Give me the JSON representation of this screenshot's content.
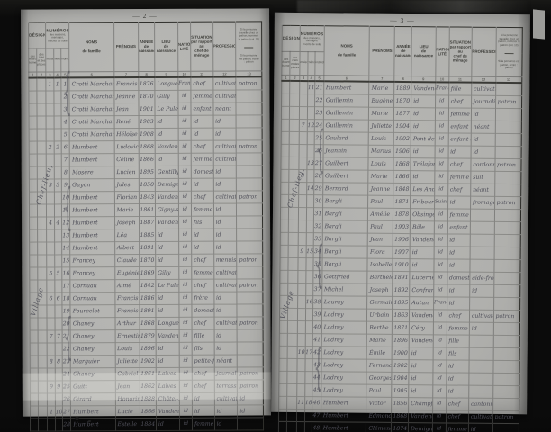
{
  "scan": {
    "colors": {
      "bg": "#0b0b0b",
      "paper": "#b4b4b1",
      "ink": "#50505a",
      "print": "#3c3c38",
      "rule": "#8f8f8b",
      "border": "#2f2f2b"
    }
  },
  "table_header": {
    "designation": {
      "title": "DÉSIGNATION",
      "sub_left": "des\nécarts,\nhameaux",
      "sub_right": "des rues\net des\nplaces"
    },
    "numeros": {
      "title": "NUMÉROS",
      "subtitle": "des maisons, ménages,\ninscrits de suite",
      "cols": [
        "maisons",
        "ménages",
        "individus"
      ]
    },
    "noms": "NOMS\n\nde famille",
    "prenoms": "PRÉNOMS",
    "annee": "ANNÉE\nde\nnaissance",
    "lieu": "LIEU\nde\nnaissance",
    "nation": "NATIONA-\nLITÉ",
    "situation": "SITUATION\npar rapport\nau\nchef de ménage",
    "profession": "PROFESSION",
    "patron_note_1": "Si la personne travaille chez un patron, nommer le patron (col. 13)",
    "patron_note_2": "Si la personne est patron, écrire : patron",
    "col_numbers": [
      "1",
      "2",
      "3",
      "4",
      "5",
      "6",
      "7",
      "8",
      "9",
      "10",
      "11",
      "12",
      "13"
    ]
  },
  "pages": [
    {
      "page_number": "— 2 —",
      "margin_labels": [
        "Chef-lieu,",
        "Village"
      ],
      "rows": [
        [
          "1",
          "1",
          "1",
          "Crotti Marchand",
          "Francis",
          "1876",
          "Longuevergne",
          "Française",
          "chef",
          "cultivateur",
          "patron"
        ],
        [
          "",
          "",
          "2",
          "Crotti Marchand",
          "Jeanne",
          "1870",
          "Gilly",
          "id",
          "femme",
          "cultivatrice",
          ""
        ],
        [
          "",
          "",
          "3",
          "Crotti Marchand",
          "Jean",
          "1901",
          "Le Puley",
          "id",
          "enfant",
          "néant",
          ""
        ],
        [
          "",
          "",
          "4",
          "Crotti Marchand",
          "René",
          "1903",
          "id",
          "id",
          "id",
          "id",
          ""
        ],
        [
          "",
          "",
          "5",
          "Crotti Marchand",
          "Héloïse",
          "1908",
          "id",
          "id",
          "id",
          "id",
          ""
        ],
        [
          "2",
          "2",
          "6",
          "Humbert",
          "Ludovic",
          "1868",
          "Vandenesse",
          "id",
          "chef",
          "cultivateur",
          "patron"
        ],
        [
          "",
          "",
          "7",
          "Humbert",
          "Céline",
          "1866",
          "id",
          "id",
          "femme",
          "cultivatrice",
          ""
        ],
        [
          "",
          "",
          "8",
          "Mosère",
          "Lucien",
          "1895",
          "Gentilly",
          "id",
          "domestique",
          "id",
          ""
        ],
        [
          "3",
          "3",
          "9",
          "Guyon",
          "Jules",
          "1850",
          "Demigny",
          "id",
          "id",
          "id",
          ""
        ],
        [
          "",
          "",
          "10",
          "Humbert",
          "Florian",
          "1843",
          "Vandenesse",
          "id",
          "chef",
          "cultivateur",
          "patron"
        ],
        [
          "",
          "",
          "11",
          "Humbert",
          "Marie",
          "1861",
          "Gigny-s-Saône",
          "id",
          "femme",
          "id",
          ""
        ],
        [
          "4",
          "4",
          "12",
          "Humbert",
          "Joseph",
          "1887",
          "Vandenesse",
          "id",
          "fils",
          "id",
          ""
        ],
        [
          "",
          "",
          "13",
          "Humbert",
          "Léa",
          "1885",
          "id",
          "id",
          "id",
          "id",
          ""
        ],
        [
          "",
          "",
          "14",
          "Humbert",
          "Albert",
          "1891",
          "id",
          "id",
          "id",
          "id",
          ""
        ],
        [
          "",
          "",
          "15",
          "Francey",
          "Claude",
          "1870",
          "id",
          "id",
          "chef",
          "menuisier",
          "patron"
        ],
        [
          "5",
          "5",
          "16",
          "Francey",
          "Eugénie",
          "1869",
          "Gilly",
          "id",
          "femme",
          "cultivatrice",
          ""
        ],
        [
          "",
          "",
          "17",
          "Cornuau",
          "Aimé",
          "1842",
          "Le Puley",
          "id",
          "chef",
          "cultivateur",
          "patron"
        ],
        [
          "6",
          "6",
          "18",
          "Cornuau",
          "Francis",
          "1886",
          "id",
          "id",
          "frère",
          "id",
          ""
        ],
        [
          "",
          "",
          "19",
          "Fourcelot",
          "Francis",
          "1891",
          "id",
          "id",
          "domestique",
          "id",
          ""
        ],
        [
          "",
          "",
          "20",
          "Chaney",
          "Arthur",
          "1868",
          "Longuevergne",
          "id",
          "chef",
          "cultivateur",
          "patron"
        ],
        [
          "7",
          "7",
          "21",
          "Chaney",
          "Ernestine",
          "1879",
          "Vandenesse",
          "id",
          "fille",
          "id",
          ""
        ],
        [
          "",
          "",
          "22",
          "Chaney",
          "Louis",
          "1896",
          "id",
          "id",
          "fils",
          "id",
          ""
        ],
        [
          "8",
          "8",
          "23",
          "Marguier",
          "Juliette",
          "1902",
          "id",
          "id",
          "petite-fille",
          "néant",
          ""
        ],
        [
          "",
          "",
          "24",
          "Chaney",
          "Gabriel",
          "1861",
          "Laives",
          "id",
          "chef",
          "journalier",
          "patron"
        ],
        [
          "9",
          "9",
          "25",
          "Guitt",
          "Jean",
          "1862",
          "Laives",
          "id",
          "chef",
          "terrassier",
          "patron"
        ],
        [
          "",
          "",
          "26",
          "Girard",
          "Honorine",
          "1888",
          "Châtel-Moron",
          "id",
          "id",
          "cultivatrice",
          "id"
        ],
        [
          "1",
          "10",
          "27",
          "Humbert",
          "Lucie",
          "1866",
          "Vandenesse",
          "id",
          "id",
          "id",
          "id"
        ],
        [
          "",
          "",
          "28",
          "Humbert",
          "Estelle",
          "1884",
          "id",
          "id",
          "femme",
          "id",
          ""
        ]
      ]
    },
    {
      "page_number": "— 3 —",
      "margin_labels": [
        "Chef-lieu,",
        "Village"
      ],
      "rows": [
        [
          "",
          "11",
          "21",
          "Humbert",
          "Marie",
          "1889",
          "Vandenesse",
          "Française",
          "fille",
          "cultivatrice",
          ""
        ],
        [
          "",
          "",
          "22",
          "Guillemin",
          "Eugène",
          "1870",
          "id",
          "id",
          "chef",
          "journalier",
          "patron"
        ],
        [
          "",
          "",
          "23",
          "Guillemin",
          "Marie",
          "1877",
          "id",
          "id",
          "femme",
          "id",
          ""
        ],
        [
          "7",
          "12",
          "24",
          "Guillemin",
          "Juliette",
          "1904",
          "id",
          "id",
          "enfant",
          "néant",
          ""
        ],
        [
          "",
          "",
          "25",
          "Gaulard",
          "Louis",
          "1902",
          "Pont-de-Vaux",
          "id",
          "enfant assisté",
          "id",
          ""
        ],
        [
          "",
          "",
          "26",
          "Jeannin",
          "Marius",
          "1906",
          "id",
          "id",
          "id",
          "id",
          ""
        ],
        [
          "",
          "13",
          "27",
          "Guilbert",
          "Louis",
          "1868",
          "Trélaford",
          "id",
          "chef",
          "cordonnier",
          "patron"
        ],
        [
          "8",
          "",
          "28",
          "Guilbert",
          "Marie",
          "1866",
          "id",
          "id",
          "femme",
          "suit",
          ""
        ],
        [
          "",
          "14",
          "29",
          "Bernard",
          "Jeanne",
          "1848",
          "Les Andelys",
          "id",
          "chef",
          "néant",
          ""
        ],
        [
          "",
          "",
          "30",
          "Bargli",
          "Paul",
          "1871",
          "Fribourg",
          "Suisse",
          "id",
          "fromager",
          "patron"
        ],
        [
          "",
          "",
          "31",
          "Bargli",
          "Amélie",
          "1878",
          "Obsingen",
          "id",
          "femme",
          "",
          ""
        ],
        [
          "",
          "",
          "32",
          "Bargli",
          "Paul",
          "1903",
          "Bâle",
          "id",
          "enfant",
          "",
          ""
        ],
        [
          "",
          "",
          "33",
          "Bargli",
          "Jean",
          "1906",
          "Vandenesse",
          "id",
          "id",
          "",
          ""
        ],
        [
          "9",
          "15",
          "34",
          "Bargli",
          "Flora",
          "1907",
          "id",
          "id",
          "id",
          "",
          ""
        ],
        [
          "",
          "",
          "35",
          "Bargli",
          "Isabelle",
          "1910",
          "id",
          "id",
          "id",
          "",
          ""
        ],
        [
          "",
          "",
          "36",
          "Gottfried",
          "Barthélémé",
          "1891",
          "Lucerne",
          "id",
          "domestique",
          "aide-fromager",
          ""
        ],
        [
          "",
          "",
          "37",
          "Michel",
          "Joseph",
          "1892",
          "Confrançon",
          "id",
          "id",
          "id",
          ""
        ],
        [
          "",
          "16",
          "38",
          "Lauray",
          "Germaine",
          "1895",
          "Autun",
          "Française",
          "id",
          "",
          ""
        ],
        [
          "",
          "",
          "39",
          "Ladrey",
          "Urbain",
          "1863",
          "Vandenesse",
          "id",
          "chef",
          "cultivateur",
          "patron"
        ],
        [
          "",
          "",
          "40",
          "Ladrey",
          "Berthe",
          "1871",
          "Céry",
          "id",
          "femme",
          "id",
          ""
        ],
        [
          "",
          "",
          "41",
          "Ladrey",
          "Marie",
          "1896",
          "Vandenesse",
          "id",
          "fille",
          "",
          ""
        ],
        [
          "10",
          "17",
          "42",
          "Ladrey",
          "Émile",
          "1900",
          "id",
          "id",
          "fils",
          "",
          ""
        ],
        [
          "",
          "",
          "43",
          "Ladrey",
          "Fernand",
          "1902",
          "id",
          "id",
          "id",
          "",
          ""
        ],
        [
          "",
          "",
          "44",
          "Ladrey",
          "Georges",
          "1904",
          "id",
          "id",
          "id",
          "",
          ""
        ],
        [
          "",
          "",
          "45",
          "Ladrey",
          "Paul",
          "1905",
          "id",
          "id",
          "id",
          "",
          ""
        ],
        [
          "11",
          "18",
          "46",
          "Humbert",
          "Victor",
          "1856",
          "Champforgeuil",
          "id",
          "chef",
          "cantonnier",
          ""
        ],
        [
          "",
          "",
          "47",
          "Humbert",
          "Edmond",
          "1868",
          "Vandenesse",
          "id",
          "chef",
          "cultivateur",
          "patron"
        ],
        [
          "",
          "",
          "48",
          "Humbert",
          "Clémence",
          "1874",
          "Demigny",
          "id",
          "femme",
          "id",
          ""
        ]
      ]
    }
  ]
}
